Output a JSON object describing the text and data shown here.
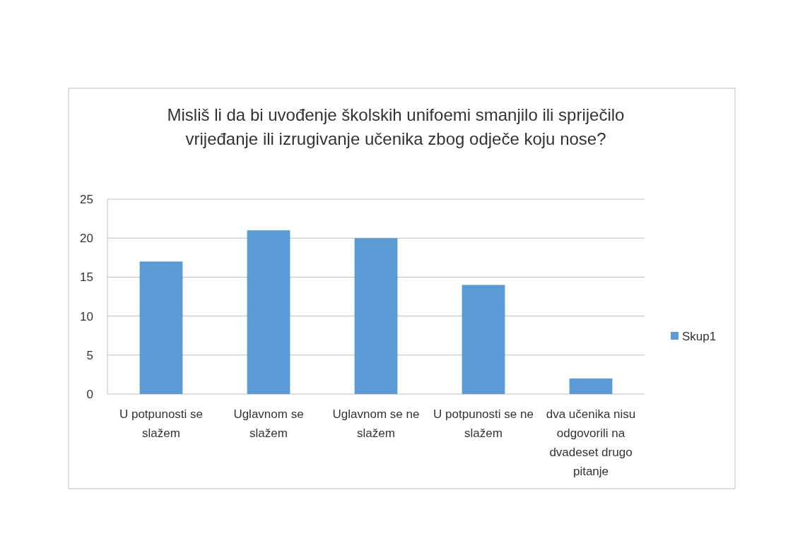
{
  "chart_data": {
    "type": "bar",
    "title": "Misliš li da bi uvođenje školskih unifoemi smanjilo ili spriječilo vrijeđanje ili izrugivanje učenika zbog odječe koju nose?",
    "categories": [
      "U potpunosti se slažem",
      "Uglavnom se slažem",
      "Uglavnom se ne slažem",
      "U potpunosti se ne slažem",
      "dva učenika nisu odgovorili na dvadeset drugo pitanje"
    ],
    "series": [
      {
        "name": "Skup1",
        "color": "#5b9bd5",
        "values": [
          17,
          21,
          20,
          14,
          2
        ]
      }
    ],
    "ylim": [
      0,
      25
    ],
    "yticks": [
      0,
      5,
      10,
      15,
      20,
      25
    ],
    "grid": "y",
    "legend": "right"
  }
}
